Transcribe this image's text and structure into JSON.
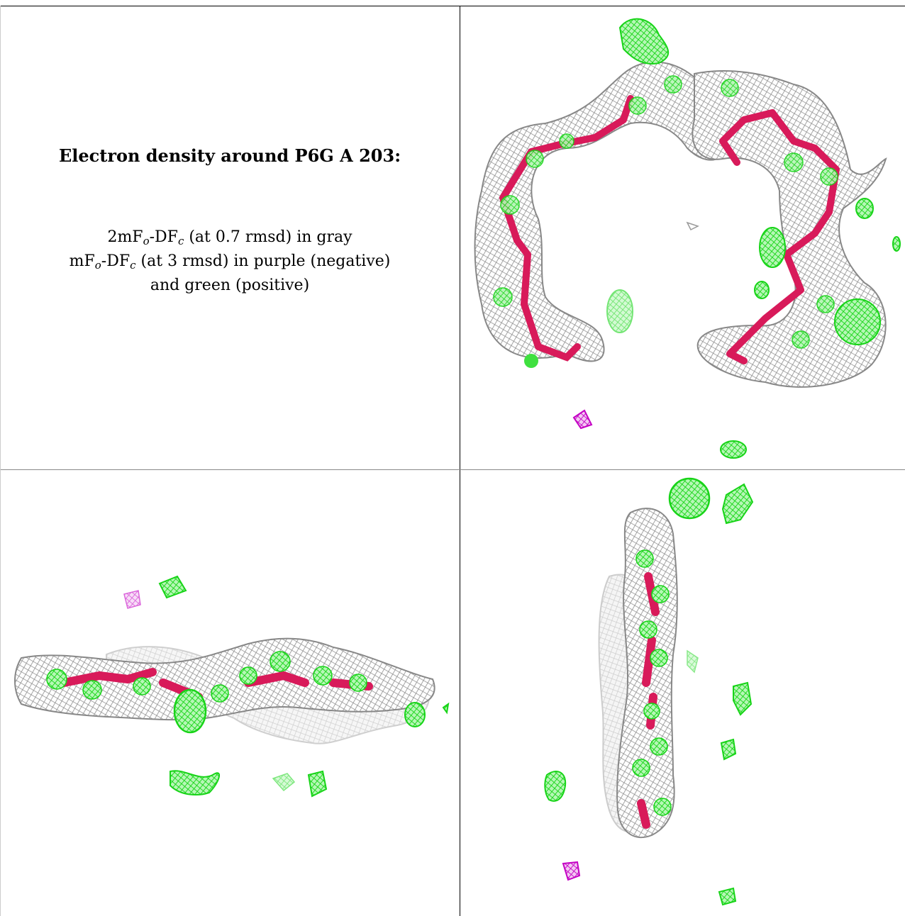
{
  "figure": {
    "title": "Electron density around P6G A 203:",
    "legend": {
      "line1": {
        "pre": "2mF",
        "sub1": "o",
        "mid": "-DF",
        "sub2": "c",
        "post": " (at 0.7 rmsd) in gray"
      },
      "line2": {
        "pre": "mF",
        "sub1": "o",
        "mid": "-DF",
        "sub2": "c",
        "post": " (at 3 rmsd) in purple (negative)"
      },
      "line3": "and green (positive)"
    }
  },
  "colors": {
    "mesh_gray": "#9a9a9a",
    "positive_green": "#22e022",
    "negative_purple": "#c800c8",
    "model_red": "#d81a5a"
  },
  "panels": [
    {
      "view": "top-right"
    },
    {
      "view": "bottom-left"
    },
    {
      "view": "bottom-right"
    }
  ]
}
